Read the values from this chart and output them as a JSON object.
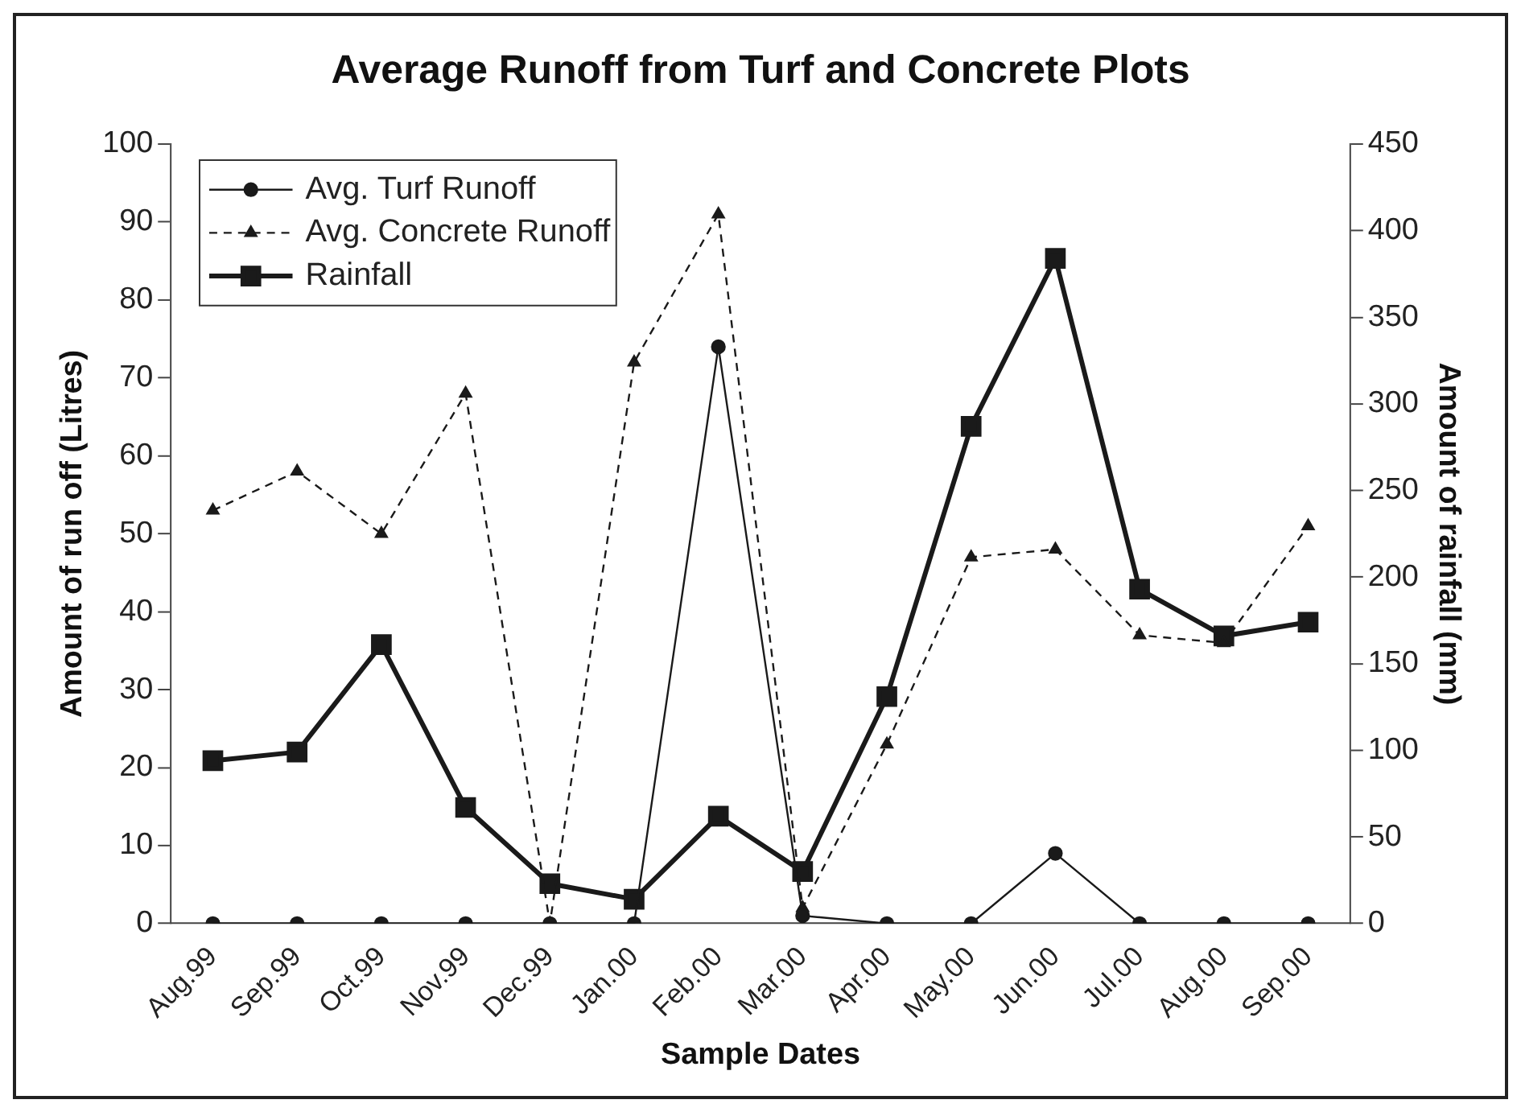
{
  "chart_data": {
    "type": "line",
    "title": "Average Runoff from Turf and Concrete Plots",
    "xlabel": "Sample Dates",
    "ylabel": "Amount of run off (Litres)",
    "y2label": "Amount of rainfall (mm)",
    "categories": [
      "Aug.99",
      "Sep.99",
      "Oct.99",
      "Nov.99",
      "Dec.99",
      "Jan.00",
      "Feb.00",
      "Mar.00",
      "Apr.00",
      "May.00",
      "Jun.00",
      "Jul.00",
      "Aug.00",
      "Sep.00"
    ],
    "series": [
      {
        "name": "Avg. Turf Runoff",
        "color": "#1a1a1a",
        "marker": "circle",
        "line_style": "solid",
        "values": [
          0,
          0,
          0,
          0,
          0,
          0,
          74,
          1,
          0,
          0,
          9,
          0,
          0,
          0
        ]
      },
      {
        "name": "Avg. Concrete Runoff",
        "color": "#1a1a1a",
        "marker": "triangle",
        "line_style": "dashed",
        "values": [
          53,
          58,
          50,
          68,
          0,
          72,
          91,
          2,
          23,
          47,
          48,
          37,
          36,
          51
        ]
      },
      {
        "name": "Rainfall",
        "color": "#1a1a1a",
        "marker": "square",
        "line_style": "solid",
        "axis": "y2",
        "values": [
          94,
          99,
          161,
          67,
          23,
          14,
          62,
          30,
          131,
          287,
          384,
          193,
          166,
          174
        ]
      }
    ],
    "ylim": [
      0,
      100
    ],
    "yticks": [
      0,
      10,
      20,
      30,
      40,
      50,
      60,
      70,
      80,
      90,
      100
    ],
    "y2lim": [
      0,
      450
    ],
    "y2ticks": [
      0,
      50,
      100,
      150,
      200,
      250,
      300,
      350,
      400,
      450
    ],
    "grid": false,
    "legend": "top left"
  }
}
